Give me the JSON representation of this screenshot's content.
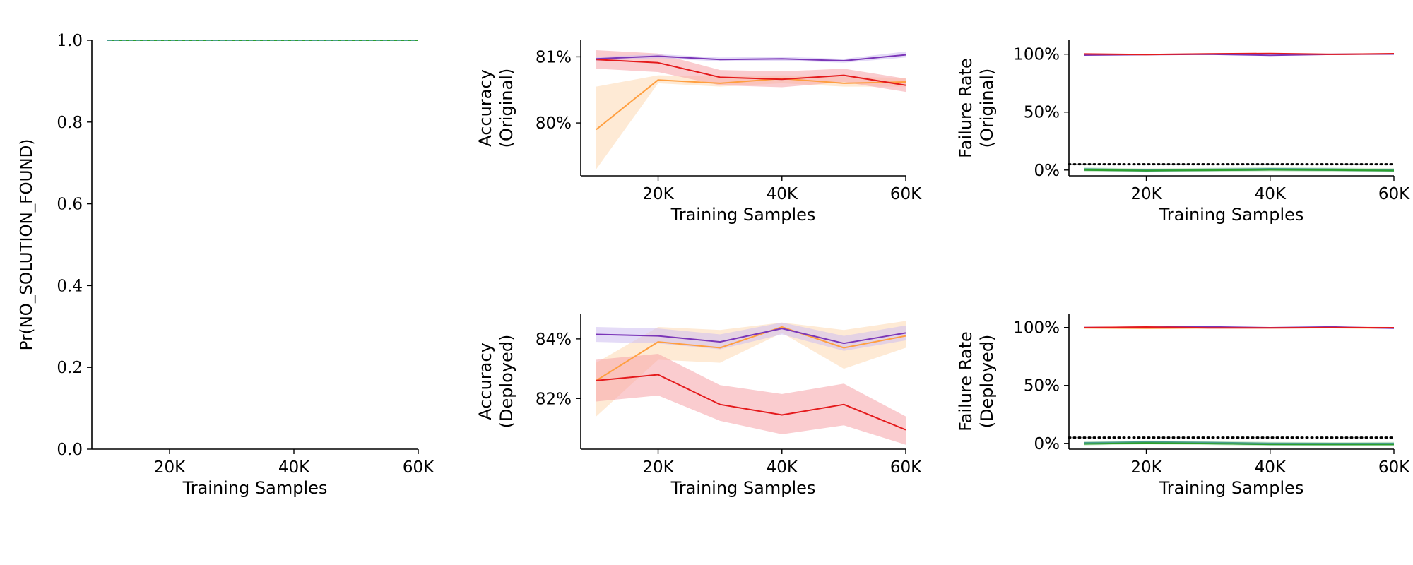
{
  "colors": {
    "red": "#e41a1c",
    "orange": "#ff9f40",
    "purple": "#7b36b8",
    "green": "#2ca02c",
    "teal": "#4a9e8e",
    "red_band": "#f5a3a7",
    "orange_band": "#fdd8b3",
    "purple_band": "#cdbdf0",
    "green_band": "#a8d8a8"
  },
  "chart_data": [
    {
      "id": "nsf",
      "type": "line",
      "ylabel_prefix": "Pr(",
      "ylabel_code": "NO_SOLUTION_FOUND",
      "ylabel_suffix": ")",
      "xlabel": "Training Samples",
      "x": [
        10000,
        20000,
        30000,
        40000,
        50000,
        60000
      ],
      "xlim": [
        7500,
        60000
      ],
      "ylim": [
        0,
        1
      ],
      "xticks": [
        20000,
        40000,
        60000
      ],
      "xtick_labels": [
        "20K",
        "40K",
        "60K"
      ],
      "yticks": [
        0,
        0.2,
        0.4,
        0.6,
        0.8,
        1.0
      ],
      "ytick_labels": [
        "0.0",
        "0.2",
        "0.4",
        "0.6",
        "0.8",
        "1.0"
      ],
      "series": [
        {
          "color": "green",
          "dash": "",
          "values": [
            1,
            1,
            1,
            1,
            1,
            1
          ]
        },
        {
          "color": "teal",
          "dash": "6,4",
          "values": [
            1,
            1,
            1,
            1,
            1,
            1
          ]
        }
      ]
    },
    {
      "id": "acc_orig",
      "type": "line",
      "ylabel": [
        "Accuracy",
        "(Original)"
      ],
      "xlabel": "Training Samples",
      "x": [
        10000,
        20000,
        30000,
        40000,
        50000,
        60000
      ],
      "xlim": [
        7500,
        60000
      ],
      "ylim": [
        79.2,
        81.25
      ],
      "xticks": [
        20000,
        40000,
        60000
      ],
      "xtick_labels": [
        "20K",
        "40K",
        "60K"
      ],
      "yticks": [
        80,
        81
      ],
      "ytick_labels": [
        "80%",
        "81%"
      ],
      "series": [
        {
          "color": "orange",
          "band": "orange_band",
          "values": [
            79.9,
            80.65,
            80.6,
            80.67,
            80.6,
            80.62
          ],
          "lower": [
            79.3,
            80.6,
            80.55,
            80.6,
            80.55,
            80.55
          ],
          "upper": [
            80.55,
            80.72,
            80.7,
            80.72,
            80.7,
            80.68
          ]
        },
        {
          "color": "red",
          "band": "red_band",
          "values": [
            80.96,
            80.91,
            80.69,
            80.66,
            80.72,
            80.57
          ],
          "lower": [
            80.82,
            80.77,
            80.57,
            80.54,
            80.62,
            80.47
          ],
          "upper": [
            81.1,
            81.05,
            80.8,
            80.78,
            80.82,
            80.67
          ]
        },
        {
          "color": "purple",
          "band": "purple_band",
          "values": [
            80.97,
            81.01,
            80.96,
            80.97,
            80.94,
            81.03
          ],
          "lower": [
            80.94,
            80.98,
            80.93,
            80.94,
            80.91,
            80.99
          ],
          "upper": [
            81.0,
            81.04,
            80.99,
            81.0,
            80.97,
            81.08
          ]
        }
      ]
    },
    {
      "id": "fail_orig",
      "type": "line",
      "ylabel": [
        "Failure Rate",
        "(Original)"
      ],
      "xlabel": "Training Samples",
      "x": [
        10000,
        20000,
        30000,
        40000,
        50000,
        60000
      ],
      "xlim": [
        7500,
        60000
      ],
      "ylim": [
        -5,
        112
      ],
      "xticks": [
        20000,
        40000,
        60000
      ],
      "xtick_labels": [
        "20K",
        "40K",
        "60K"
      ],
      "yticks": [
        0,
        50,
        100
      ],
      "ytick_labels": [
        "0%",
        "50%",
        "100%"
      ],
      "hline": 5,
      "series": [
        {
          "color": "teal",
          "band": "green_band",
          "width": 3.5,
          "values": [
            0.5,
            -0.3,
            0.2,
            0.6,
            0.3,
            -0.2
          ],
          "lower": [
            -1.2,
            -2,
            -1.5,
            -1.1,
            -1.4,
            -1.9
          ],
          "upper": [
            2.2,
            1.4,
            1.9,
            2.3,
            2.0,
            1.5
          ]
        },
        {
          "color": "green",
          "values": [
            0,
            -0.5,
            -0.2,
            0.2,
            0,
            -0.5
          ]
        },
        {
          "color": "purple",
          "values": [
            99.2,
            99.6,
            100,
            99.1,
            99.9,
            100.1
          ]
        },
        {
          "color": "red",
          "values": [
            100.2,
            99.7,
            100.3,
            100.6,
            99.9,
            100.4
          ]
        }
      ]
    },
    {
      "id": "acc_dep",
      "type": "line",
      "ylabel": [
        "Accuracy",
        "(Deployed)"
      ],
      "xlabel": "Training Samples",
      "x": [
        10000,
        20000,
        30000,
        40000,
        50000,
        60000
      ],
      "xlim": [
        7500,
        60000
      ],
      "ylim": [
        80.3,
        84.85
      ],
      "xticks": [
        20000,
        40000,
        60000
      ],
      "xtick_labels": [
        "20K",
        "40K",
        "60K"
      ],
      "yticks": [
        82,
        84
      ],
      "ytick_labels": [
        "82%",
        "84%"
      ],
      "series": [
        {
          "color": "orange",
          "band": "orange_band",
          "values": [
            82.6,
            83.9,
            83.7,
            84.4,
            83.7,
            84.1
          ],
          "lower": [
            81.4,
            83.3,
            83.2,
            84.2,
            83.0,
            83.7
          ],
          "upper": [
            83.2,
            84.4,
            84.3,
            84.55,
            84.3,
            84.6
          ]
        },
        {
          "color": "red",
          "band": "red_band",
          "values": [
            82.6,
            82.8,
            81.8,
            81.45,
            81.8,
            80.95
          ],
          "lower": [
            81.9,
            82.1,
            81.25,
            80.8,
            81.1,
            80.45
          ],
          "upper": [
            83.3,
            83.5,
            82.45,
            82.15,
            82.5,
            81.4
          ]
        },
        {
          "color": "purple",
          "band": "purple_band",
          "values": [
            84.15,
            84.1,
            83.9,
            84.35,
            83.85,
            84.2
          ],
          "lower": [
            83.9,
            83.85,
            83.65,
            84.15,
            83.6,
            83.95
          ],
          "upper": [
            84.4,
            84.35,
            84.15,
            84.55,
            84.1,
            84.45
          ]
        }
      ]
    },
    {
      "id": "fail_dep",
      "type": "line",
      "ylabel": [
        "Failure Rate",
        "(Deployed)"
      ],
      "xlabel": "Training Samples",
      "x": [
        10000,
        20000,
        30000,
        40000,
        50000,
        60000
      ],
      "xlim": [
        7500,
        60000
      ],
      "ylim": [
        -5,
        112
      ],
      "xticks": [
        20000,
        40000,
        60000
      ],
      "xtick_labels": [
        "20K",
        "40K",
        "60K"
      ],
      "yticks": [
        0,
        50,
        100
      ],
      "ytick_labels": [
        "0%",
        "50%",
        "100%"
      ],
      "hline": 5,
      "series": [
        {
          "color": "teal",
          "band": "green_band",
          "width": 3.5,
          "values": [
            0,
            0.8,
            0.3,
            -0.4,
            -0.6,
            -0.5
          ],
          "lower": [
            -1.7,
            -0.9,
            -1.4,
            -2.1,
            -2.3,
            -2.2
          ],
          "upper": [
            1.7,
            2.5,
            2.0,
            1.3,
            1.1,
            1.2
          ]
        },
        {
          "color": "green",
          "values": [
            -0.5,
            0.3,
            -0.2,
            -0.8,
            -1,
            -1
          ]
        },
        {
          "color": "orange",
          "values": [
            99.6,
            99.3,
            99.7,
            99.6,
            99.8,
            99.5
          ]
        },
        {
          "color": "purple",
          "values": [
            100,
            100.3,
            100.6,
            99.8,
            100.5,
            99.3
          ]
        },
        {
          "color": "red",
          "values": [
            99.9,
            100.4,
            99.6,
            99.6,
            99.9,
            99.8
          ]
        }
      ]
    }
  ]
}
